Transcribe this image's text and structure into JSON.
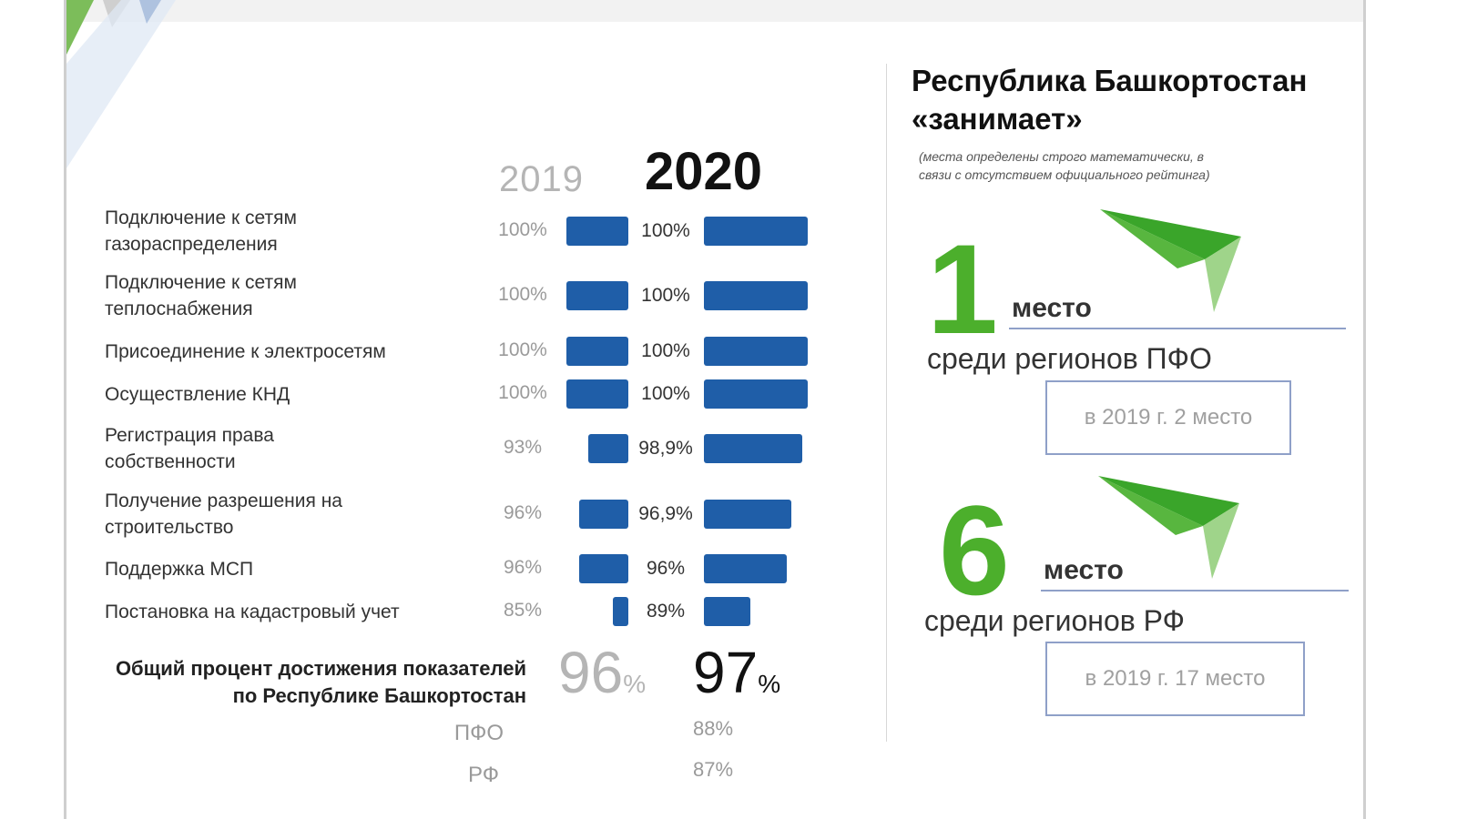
{
  "header": {
    "year_prev": "2019",
    "year_curr": "2020"
  },
  "chart_data": {
    "type": "bar",
    "categories": [
      "Подключение к сетям газораспределения",
      "Подключение к сетям теплоснабжения",
      "Присоединение к электросетям",
      "Осуществление КНД",
      "Регистрация права собственности",
      "Получение разрешения на строительство",
      "Поддержка МСП",
      "Постановка на кадастровый учет"
    ],
    "series": [
      {
        "name": "2019",
        "values": [
          100,
          100,
          100,
          100,
          93,
          96,
          96,
          85
        ],
        "labels": [
          "100%",
          "100%",
          "100%",
          "100%",
          "93%",
          "96%",
          "96%",
          "85%"
        ]
      },
      {
        "name": "2020",
        "values": [
          100,
          100,
          100,
          100,
          98.9,
          96.9,
          96,
          89
        ],
        "labels": [
          "100%",
          "100%",
          "100%",
          "100%",
          "98,9%",
          "96,9%",
          "96%",
          "89%"
        ]
      }
    ],
    "ylim": [
      0,
      100
    ]
  },
  "rows": [
    {
      "label": [
        "Подключение к сетям",
        "газораспределения"
      ]
    },
    {
      "label": [
        "Подключение к сетям",
        "теплоснабжения"
      ]
    },
    {
      "label": [
        "Присоединение к электросетям"
      ]
    },
    {
      "label": [
        "Осуществление КНД"
      ]
    },
    {
      "label": [
        "Регистрация права",
        "собственности"
      ]
    },
    {
      "label": [
        "Получение разрешения на",
        "строительство"
      ]
    },
    {
      "label": [
        "Поддержка МСП"
      ]
    },
    {
      "label": [
        "Постановка на кадастровый учет"
      ]
    }
  ],
  "total": {
    "label_line1": "Общий процент достижения показателей",
    "label_line2": "по Республике Башкортостан",
    "value_2019": "96",
    "value_2020": "97",
    "pct_sign": "%",
    "pfo_label": "ПФО",
    "pfo_value": "88%",
    "rf_label": "РФ",
    "rf_value": "87%"
  },
  "ranking": {
    "title_line1": "Республика Башкортостан",
    "title_line2": "«занимает»",
    "note_line1": "(места определены строго математически, в",
    "note_line2": "связи с отсутствием официального рейтинга)",
    "pfo": {
      "rank": "1",
      "mesto": "место",
      "region": "среди регионов ПФО",
      "prev": "в 2019 г.   2 место"
    },
    "rf": {
      "rank": "6",
      "mesto": "место",
      "region": "среди регионов РФ",
      "prev": "в 2019 г.   17 место"
    }
  },
  "colors": {
    "bar": "#1f5ea8",
    "rank_green": "#4caf2c",
    "arrow_dark": "#3aa52a",
    "arrow_light": "#9fd48a"
  }
}
